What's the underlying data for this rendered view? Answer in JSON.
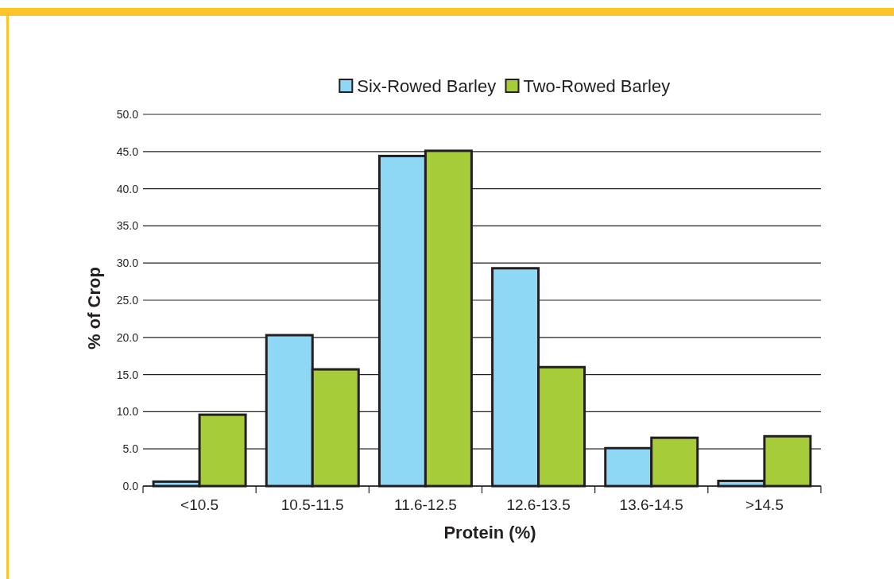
{
  "chart_data": {
    "type": "bar",
    "xlabel": "Protein (%)",
    "ylabel": "% of Crop",
    "categories": [
      "<10.5",
      "10.5-11.5",
      "11.6-12.5",
      "12.6-13.5",
      "13.6-14.5",
      ">14.5"
    ],
    "series": [
      {
        "name": "Six-Rowed Barley",
        "color": "#8fd8f5",
        "values": [
          0.6,
          20.3,
          44.4,
          29.3,
          5.1,
          0.7
        ]
      },
      {
        "name": "Two-Rowed Barley",
        "color": "#a6cd39",
        "values": [
          9.6,
          15.7,
          45.1,
          16.0,
          6.5,
          6.7
        ]
      }
    ],
    "ylim": [
      0,
      50
    ],
    "yticks": [
      {
        "value": 0,
        "label": "0.0"
      },
      {
        "value": 5,
        "label": "5.0"
      },
      {
        "value": 10,
        "label": "10.0"
      },
      {
        "value": 15,
        "label": "15.0"
      },
      {
        "value": 20,
        "label": "20.0"
      },
      {
        "value": 25,
        "label": "25.0"
      },
      {
        "value": 30,
        "label": "30.0"
      },
      {
        "value": 35,
        "label": "35.0"
      },
      {
        "value": 40,
        "label": "40.0"
      },
      {
        "value": 45,
        "label": "45.0"
      },
      {
        "value": 50,
        "label": "50.0"
      }
    ],
    "grid": "y",
    "legend": "top"
  }
}
